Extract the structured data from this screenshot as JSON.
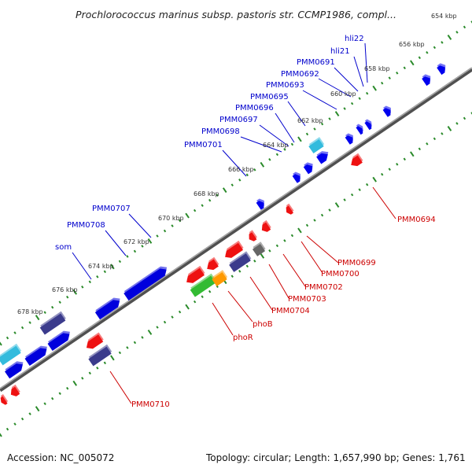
{
  "title": "Prochlorococcus marinus subsp. pastoris str. CCMP1986, compl...",
  "footer": {
    "accession": "Accession: NC_005072",
    "summary": "Topology: circular; Length: 1,657,990 bp; Genes: 1,761"
  },
  "colors": {
    "forward_label": "#0000cc",
    "reverse_label": "#cc0000",
    "tick_dots": "#2a8a2a",
    "backbone": "#808080"
  },
  "ticks": [
    "654 kbp",
    "656 kbp",
    "658 kbp",
    "660 kbp",
    "662 kbp",
    "664 kbp",
    "666 kbp",
    "668 kbp",
    "670 kbp",
    "672 kbp",
    "674 kbp",
    "676 kbp",
    "678 kbp"
  ],
  "forward_labels": [
    "hli22",
    "hli21",
    "PMM0691",
    "PMM0692",
    "PMM0693",
    "PMM0695",
    "PMM0696",
    "PMM0697",
    "PMM0698",
    "PMM0701",
    "PMM0707",
    "PMM0708",
    "som"
  ],
  "reverse_labels": [
    "PMM0694",
    "PMM0699",
    "PMM0700",
    "PMM0702",
    "PMM0703",
    "PMM0704",
    "phoB",
    "phoR",
    "PMM0710"
  ]
}
